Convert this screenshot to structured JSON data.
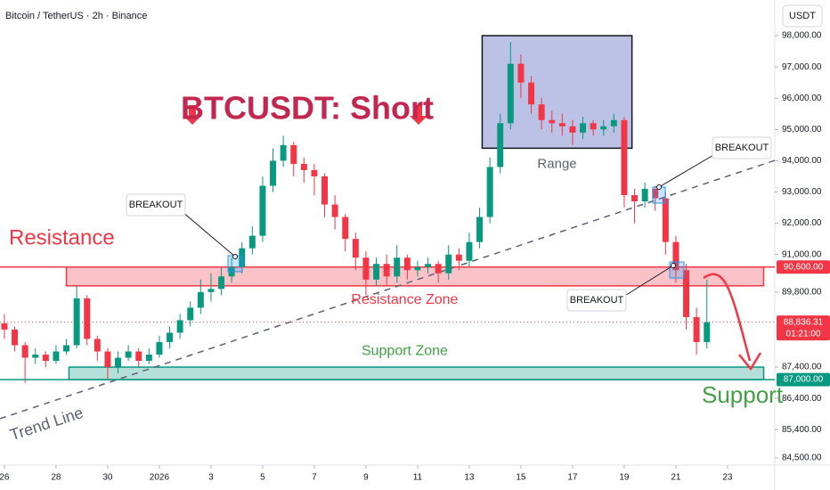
{
  "chart_data": {
    "type": "candlestick",
    "symbol": "Bitcoin / TetherUS · 2h · Binance",
    "currency": "USDT",
    "title": "BTCUSDT: Short",
    "up_color": "#089981",
    "down_color": "#f23645",
    "xlim": [
      -0.17,
      29.83
    ],
    "xticks": [
      {
        "value": 0,
        "label": "26"
      },
      {
        "value": 2,
        "label": "28"
      },
      {
        "value": 4,
        "label": "30"
      },
      {
        "value": 6,
        "label": "2026"
      },
      {
        "value": 8,
        "label": "3"
      },
      {
        "value": 10,
        "label": "5"
      },
      {
        "value": 12,
        "label": "7"
      },
      {
        "value": 14,
        "label": "9"
      },
      {
        "value": 16,
        "label": "11"
      },
      {
        "value": 18,
        "label": "13"
      },
      {
        "value": 20,
        "label": "15"
      },
      {
        "value": 22,
        "label": "17"
      },
      {
        "value": 24,
        "label": "19"
      },
      {
        "value": 26,
        "label": "21"
      },
      {
        "value": 28,
        "label": "23"
      }
    ],
    "ylim": [
      83470,
      99140
    ],
    "yticks": [
      {
        "value": 98000,
        "label": "98,000.00"
      },
      {
        "value": 97000,
        "label": "97,000.00"
      },
      {
        "value": 96000,
        "label": "96,000.00"
      },
      {
        "value": 95000,
        "label": "95,000.00"
      },
      {
        "value": 94000,
        "label": "94,000.00"
      },
      {
        "value": 93000,
        "label": "93,000.00"
      },
      {
        "value": 92000,
        "label": "92,000.00"
      },
      {
        "value": 91000,
        "label": "91,000.00"
      },
      {
        "value": 89800,
        "label": "89,800.00"
      },
      {
        "value": 87400,
        "label": "87,400.00"
      },
      {
        "value": 86400,
        "label": "86,400.00"
      },
      {
        "value": 85400,
        "label": "85,400.00"
      },
      {
        "value": 84500,
        "label": "84,500.00"
      }
    ],
    "x": [
      0.0,
      0.4,
      0.8,
      1.2,
      1.6,
      2.0,
      2.4,
      2.8,
      3.2,
      3.6,
      4.0,
      4.4,
      4.8,
      5.2,
      5.6,
      6.0,
      6.4,
      6.8,
      7.2,
      7.6,
      8.0,
      8.4,
      8.8,
      9.2,
      9.6,
      10.0,
      10.4,
      10.8,
      11.2,
      11.6,
      12.0,
      12.4,
      12.8,
      13.2,
      13.6,
      14.0,
      14.4,
      14.8,
      15.2,
      15.6,
      16.0,
      16.4,
      16.8,
      17.2,
      17.6,
      18.0,
      18.4,
      18.8,
      19.2,
      19.6,
      20.0,
      20.4,
      20.8,
      21.2,
      21.6,
      22.0,
      22.4,
      22.8,
      23.2,
      23.6,
      24.0,
      24.4,
      24.8,
      25.2,
      25.6,
      26.0,
      26.4,
      26.8,
      27.2
    ],
    "open": [
      88800,
      88600,
      88100,
      87700,
      87800,
      87600,
      87900,
      88100,
      89600,
      88300,
      87900,
      87400,
      87700,
      87900,
      87600,
      87800,
      88200,
      88500,
      88900,
      89300,
      89800,
      89900,
      90300,
      90600,
      91200,
      91600,
      93200,
      94000,
      94500,
      93900,
      93700,
      93500,
      92600,
      92200,
      91500,
      90900,
      90200,
      90700,
      90300,
      90900,
      90500,
      90600,
      90700,
      90400,
      91000,
      90800,
      91400,
      92200,
      93800,
      95200,
      97100,
      96500,
      95800,
      95300,
      95200,
      95100,
      94900,
      95200,
      95000,
      95100,
      95300,
      92900,
      92700,
      93100,
      92800,
      91400,
      90500,
      89000,
      88200
    ],
    "high": [
      89100,
      88700,
      88200,
      88000,
      87900,
      88100,
      88300,
      90000,
      89700,
      88400,
      88000,
      87900,
      88100,
      88000,
      88000,
      88400,
      88700,
      89100,
      89500,
      90200,
      90400,
      90600,
      90900,
      91400,
      91900,
      93500,
      94400,
      94800,
      94600,
      94100,
      93900,
      93600,
      92900,
      92300,
      91700,
      91100,
      90900,
      91000,
      91300,
      91000,
      90800,
      90900,
      90800,
      91300,
      91200,
      91700,
      92500,
      94100,
      95500,
      97800,
      97400,
      96700,
      96000,
      95600,
      95500,
      95300,
      95400,
      95300,
      95300,
      95500,
      95400,
      93100,
      93300,
      93200,
      93000,
      91600,
      90700,
      89300,
      90200
    ],
    "low": [
      88300,
      87900,
      86900,
      87500,
      87400,
      87500,
      87800,
      88000,
      88100,
      87600,
      87000,
      87200,
      87600,
      87400,
      87500,
      87700,
      88000,
      88300,
      88700,
      89100,
      89500,
      89700,
      90100,
      90400,
      91000,
      91400,
      93000,
      93800,
      93500,
      93300,
      92900,
      92200,
      91800,
      91100,
      90500,
      89700,
      90000,
      90000,
      90100,
      90200,
      90300,
      90400,
      90100,
      90200,
      90500,
      90600,
      91200,
      92000,
      93600,
      95000,
      96000,
      95500,
      95000,
      94900,
      94800,
      94500,
      94700,
      94800,
      94800,
      94900,
      92500,
      92000,
      92500,
      92400,
      91000,
      90100,
      88600,
      87800,
      88000
    ],
    "close": [
      88600,
      88100,
      87700,
      87800,
      87600,
      87900,
      88100,
      89600,
      88300,
      87900,
      87400,
      87700,
      87900,
      87600,
      87800,
      88200,
      88500,
      88900,
      89300,
      89800,
      89900,
      90300,
      90600,
      91200,
      91600,
      93200,
      94000,
      94500,
      93900,
      93700,
      93500,
      92600,
      92200,
      91500,
      90900,
      90200,
      90700,
      90300,
      90900,
      90500,
      90600,
      90700,
      90400,
      91000,
      90800,
      91400,
      92200,
      93800,
      95200,
      97100,
      96500,
      95800,
      95300,
      95200,
      95100,
      94900,
      95200,
      95000,
      95100,
      95300,
      92900,
      92700,
      93100,
      92800,
      91400,
      90500,
      89000,
      88200,
      88836.31
    ],
    "zones": [
      {
        "name": "Resistance Zone",
        "x": [
          2.4,
          29.4
        ],
        "y": [
          90000,
          90600
        ],
        "color": "#f23645"
      },
      {
        "name": "Support Zone",
        "x": [
          2.5,
          29.4
        ],
        "y": [
          87000,
          87400
        ],
        "color": "#089981"
      },
      {
        "name": "Range",
        "x": [
          18.5,
          24.3
        ],
        "y": [
          94400,
          98000
        ],
        "color": "#3f51b5"
      }
    ],
    "trend_line": {
      "name": "Trend Line",
      "x": [
        -0.17,
        29.83
      ],
      "y": [
        85750,
        94010
      ]
    },
    "price_labels": [
      {
        "value": 90600,
        "label": "90,600.00",
        "color": "#f23645"
      },
      {
        "value": 88836.31,
        "label": "88,836.31",
        "sublabel": "01:21:00",
        "color": "#f23645"
      },
      {
        "value": 87000,
        "label": "87,000.00",
        "color": "#089981"
      }
    ],
    "annotations": {
      "resistance": "Resistance",
      "support": "Support"
    },
    "breakouts": [
      "BREAKOUT",
      "BREAKOUT",
      "BREAKOUT"
    ]
  }
}
